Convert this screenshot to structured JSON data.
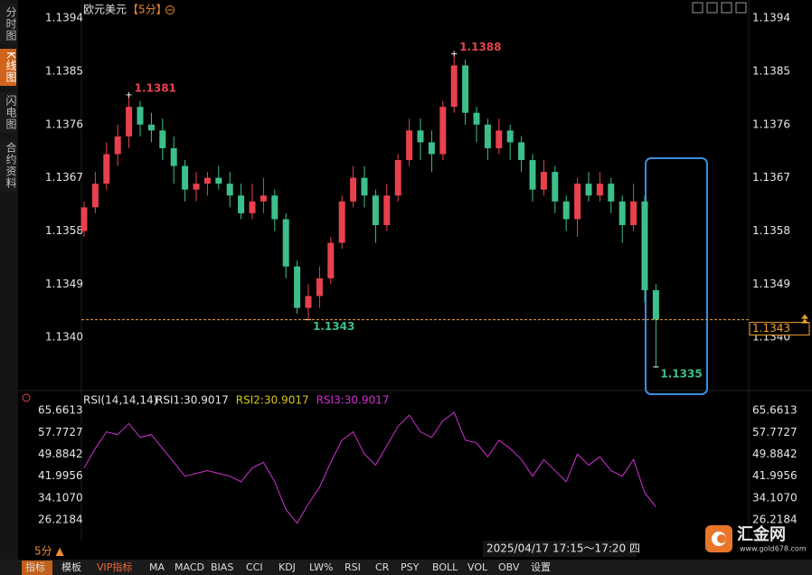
{
  "sidebar": [
    "分时图",
    "K线图",
    "闪电图",
    "合约资料"
  ],
  "header": {
    "symbol": "欧元美元",
    "period": "【5分】"
  },
  "chart_data": [
    {
      "type": "candlestick",
      "up_color": "#e8414e",
      "down_color": "#3dbf8c",
      "open": [
        1.1358,
        1.1362,
        1.1366,
        1.1371,
        1.1374,
        1.1379,
        1.1376,
        1.1375,
        1.1372,
        1.1369,
        1.1365,
        1.1366,
        1.1367,
        1.1366,
        1.1364,
        1.1361,
        1.1363,
        1.1364,
        1.136,
        1.1352,
        1.1345,
        1.1347,
        1.135,
        1.1356,
        1.1363,
        1.1367,
        1.1364,
        1.1359,
        1.1364,
        1.137,
        1.1375,
        1.1373,
        1.1371,
        1.1379,
        1.1386,
        1.1378,
        1.1376,
        1.1372,
        1.1375,
        1.1373,
        1.137,
        1.1365,
        1.1368,
        1.1363,
        1.136,
        1.1366,
        1.1364,
        1.1366,
        1.1363,
        1.1359,
        1.1363,
        1.1348
      ],
      "high": [
        1.1363,
        1.1368,
        1.1373,
        1.1376,
        1.1381,
        1.138,
        1.1378,
        1.1377,
        1.1374,
        1.137,
        1.1368,
        1.1368,
        1.1369,
        1.1368,
        1.1366,
        1.1366,
        1.1367,
        1.1365,
        1.1361,
        1.1353,
        1.1349,
        1.1352,
        1.1357,
        1.1364,
        1.1369,
        1.1369,
        1.1365,
        1.1366,
        1.1371,
        1.1377,
        1.1377,
        1.1375,
        1.138,
        1.1388,
        1.1387,
        1.1379,
        1.1377,
        1.1377,
        1.1376,
        1.1374,
        1.1371,
        1.137,
        1.1369,
        1.1364,
        1.1367,
        1.1368,
        1.1368,
        1.1367,
        1.1364,
        1.1366,
        1.1364,
        1.1349
      ],
      "low": [
        1.1357,
        1.1361,
        1.1365,
        1.1369,
        1.1372,
        1.1374,
        1.1373,
        1.137,
        1.1366,
        1.1363,
        1.1363,
        1.1364,
        1.1365,
        1.1362,
        1.136,
        1.136,
        1.1361,
        1.1358,
        1.135,
        1.1344,
        1.1343,
        1.1345,
        1.1349,
        1.1355,
        1.1362,
        1.1362,
        1.1356,
        1.1358,
        1.1363,
        1.1369,
        1.137,
        1.1368,
        1.137,
        1.1378,
        1.1376,
        1.1373,
        1.137,
        1.1371,
        1.137,
        1.1368,
        1.1363,
        1.1364,
        1.1361,
        1.1358,
        1.1357,
        1.1363,
        1.1363,
        1.1361,
        1.1356,
        1.1358,
        1.1346,
        1.1335
      ],
      "close": [
        1.1362,
        1.1366,
        1.1371,
        1.1374,
        1.1379,
        1.1376,
        1.1375,
        1.1372,
        1.1369,
        1.1365,
        1.1366,
        1.1367,
        1.1366,
        1.1364,
        1.1361,
        1.1363,
        1.1364,
        1.136,
        1.1352,
        1.1345,
        1.1347,
        1.135,
        1.1356,
        1.1363,
        1.1367,
        1.1364,
        1.1359,
        1.1364,
        1.137,
        1.1375,
        1.1373,
        1.1371,
        1.1379,
        1.1386,
        1.1378,
        1.1376,
        1.1372,
        1.1375,
        1.1373,
        1.137,
        1.1365,
        1.1368,
        1.1363,
        1.136,
        1.1366,
        1.1364,
        1.1366,
        1.1363,
        1.1359,
        1.1363,
        1.1348,
        1.1343
      ],
      "ylim": [
        1.1333,
        1.1396
      ],
      "yticks": [
        1.1394,
        1.1385,
        1.1376,
        1.1367,
        1.1358,
        1.1349,
        {
          "value": 1.134,
          "label": "1.1340"
        }
      ],
      "last_price": 1.1343,
      "last_price_color": "#f0a030"
    },
    {
      "type": "line",
      "title": "RSI(14,14,14)",
      "legend": [
        {
          "label": "RSI1:30.9017",
          "color": "#e8e8e8"
        },
        {
          "label": "RSI2:30.9017",
          "color": "#d8c818"
        },
        {
          "label": "RSI3:30.9017",
          "color": "#d030d0"
        }
      ],
      "series": [
        {
          "color": "#d030d0",
          "values": [
            45,
            52,
            58,
            57,
            61,
            56,
            57,
            52,
            47,
            42,
            43,
            44,
            43,
            42,
            40,
            45,
            47,
            40,
            30,
            25,
            32,
            38,
            47,
            55,
            58,
            50,
            46,
            53,
            60,
            64,
            58,
            56,
            62,
            65,
            55,
            54,
            49,
            55,
            52,
            48,
            42,
            48,
            44,
            40,
            50,
            46,
            49,
            44,
            42,
            48,
            36,
            31
          ]
        }
      ],
      "ylim": [
        22,
        68
      ],
      "yticks": [
        65.6613,
        57.7727,
        49.8842,
        41.9956,
        {
          "value": 34.107,
          "label": "34.1070"
        },
        26.2184
      ]
    }
  ],
  "footer": {
    "period": "5分 ▲",
    "time": "2025/04/17 17:15～17:20 四",
    "logo": "汇金网",
    "site": "www.gold678.com"
  },
  "toolbar": [
    "指标",
    "模板",
    "VIP指标",
    "MA",
    "MACD",
    "BIAS",
    "CCI",
    "KDJ",
    "LW%",
    "RSI",
    "CR",
    "PSY",
    "BOLL",
    "VOL",
    "OBV",
    "设置"
  ]
}
